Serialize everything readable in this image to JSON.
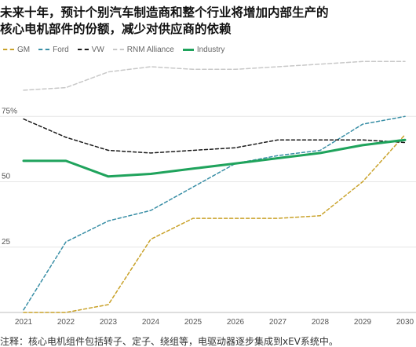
{
  "title_lines": [
    "未来十年，预计个别汽车制造商和整个行业将增加内部生产的",
    "核心电机部件的份额，减少对供应商的依赖"
  ],
  "note": "注释：核心电机组件包括转子、定子、绕组等，电驱动器逐步集成到xEV系统中。",
  "chart_data": {
    "type": "line",
    "title": "未来十年，预计个别汽车制造商和整个行业将增加内部生产的核心电机部件的份额，减少对供应商的依赖",
    "x": [
      "2021",
      "2022",
      "2023",
      "2024",
      "2025",
      "2026",
      "2027",
      "2028",
      "2029",
      "2030"
    ],
    "ylim": [
      0,
      100
    ],
    "y_ticks": [
      "25",
      "50",
      "75%"
    ],
    "y_tick_values": [
      25,
      50,
      75
    ],
    "grid": "horizontal",
    "legend_position": "top-left",
    "series": [
      {
        "name": "GM",
        "color": "#c9a22a",
        "dash": "4,3",
        "width": 1.5,
        "values": [
          0,
          0,
          3,
          28,
          36,
          36,
          36,
          37,
          50,
          68
        ]
      },
      {
        "name": "Ford",
        "color": "#3a8fa6",
        "dash": "4,3",
        "width": 1.5,
        "values": [
          1,
          27,
          35,
          39,
          48,
          57,
          60,
          62,
          72,
          75
        ]
      },
      {
        "name": "VW",
        "color": "#1a1a1a",
        "dash": "4,3",
        "width": 1.5,
        "values": [
          74,
          67,
          62,
          61,
          62,
          63,
          66,
          66,
          66,
          65
        ]
      },
      {
        "name": "RNM Alliance",
        "color": "#c8c8c8",
        "dash": "5,3",
        "width": 1.5,
        "values": [
          85,
          86,
          92,
          94,
          93,
          93,
          94,
          95,
          96,
          96
        ]
      },
      {
        "name": "Industry",
        "color": "#1fa35c",
        "dash": "",
        "width": 3,
        "values": [
          58,
          58,
          52,
          53,
          55,
          57,
          59,
          61,
          64,
          66
        ]
      }
    ]
  }
}
